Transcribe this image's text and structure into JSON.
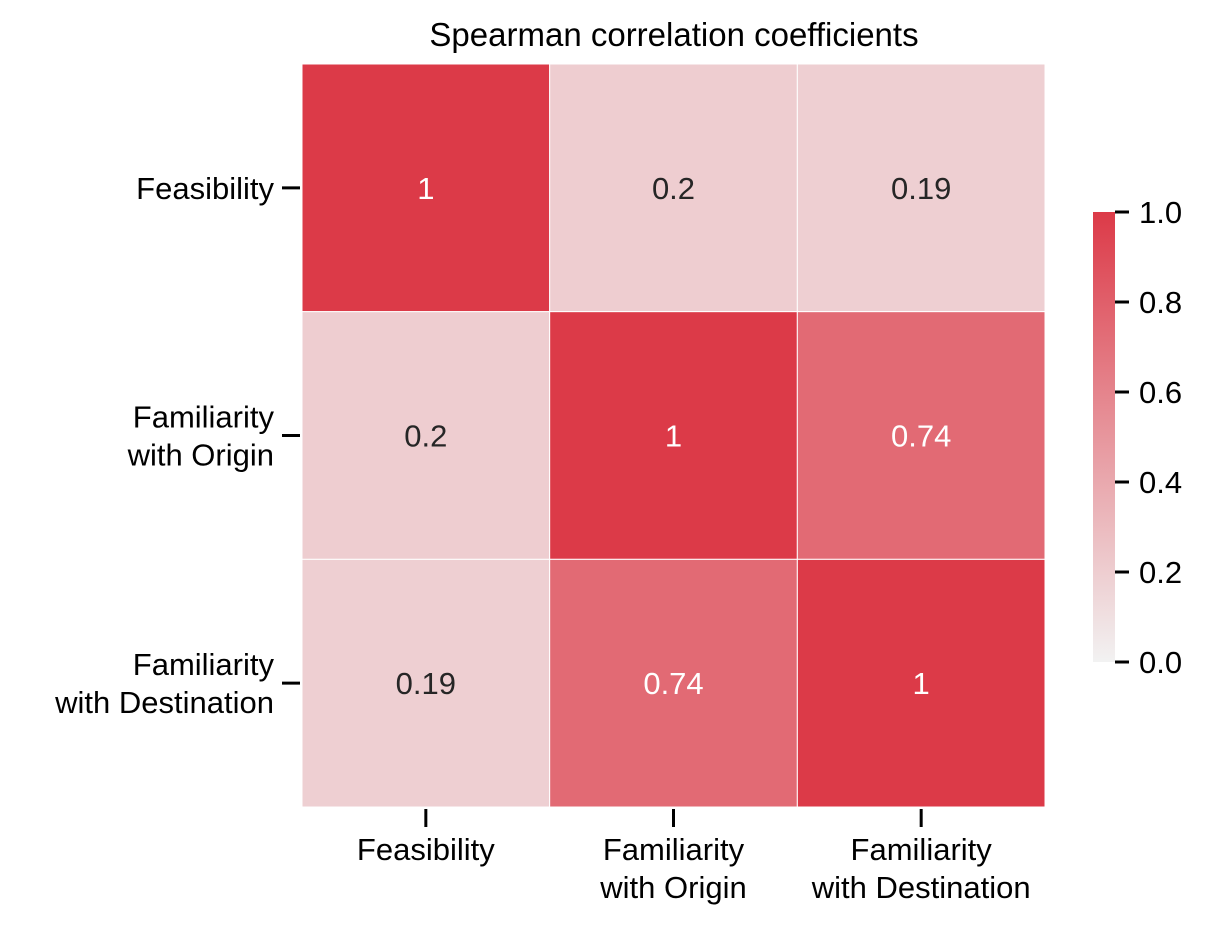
{
  "chart_data": {
    "type": "heatmap",
    "title": "Spearman correlation coefficients",
    "x_categories": [
      [
        "Feasibility"
      ],
      [
        "Familiarity",
        "with Origin"
      ],
      [
        "Familiarity",
        "with Destination"
      ]
    ],
    "y_categories": [
      [
        "Feasibility"
      ],
      [
        "Familiarity",
        "with Origin"
      ],
      [
        "Familiarity",
        "with Destination"
      ]
    ],
    "values": [
      [
        1,
        0.2,
        0.19
      ],
      [
        0.2,
        1,
        0.74
      ],
      [
        0.19,
        0.74,
        1
      ]
    ],
    "value_labels": [
      [
        "1",
        "0.2",
        "0.19"
      ],
      [
        "0.2",
        "1",
        "0.74"
      ],
      [
        "0.19",
        "0.74",
        "1"
      ]
    ],
    "colorbar": {
      "range": [
        0,
        1
      ],
      "ticks": [
        0.0,
        0.2,
        0.4,
        0.6,
        0.8,
        1.0
      ],
      "tick_labels": [
        "0.0",
        "0.2",
        "0.4",
        "0.6",
        "0.8",
        "1.0"
      ],
      "color_low": "#f2f2f2",
      "color_high": "#dc3a48"
    },
    "grid": false
  },
  "colors": {
    "accent": "#dc3a48",
    "text_dark": "#262626",
    "text_light": "#ffffff"
  }
}
